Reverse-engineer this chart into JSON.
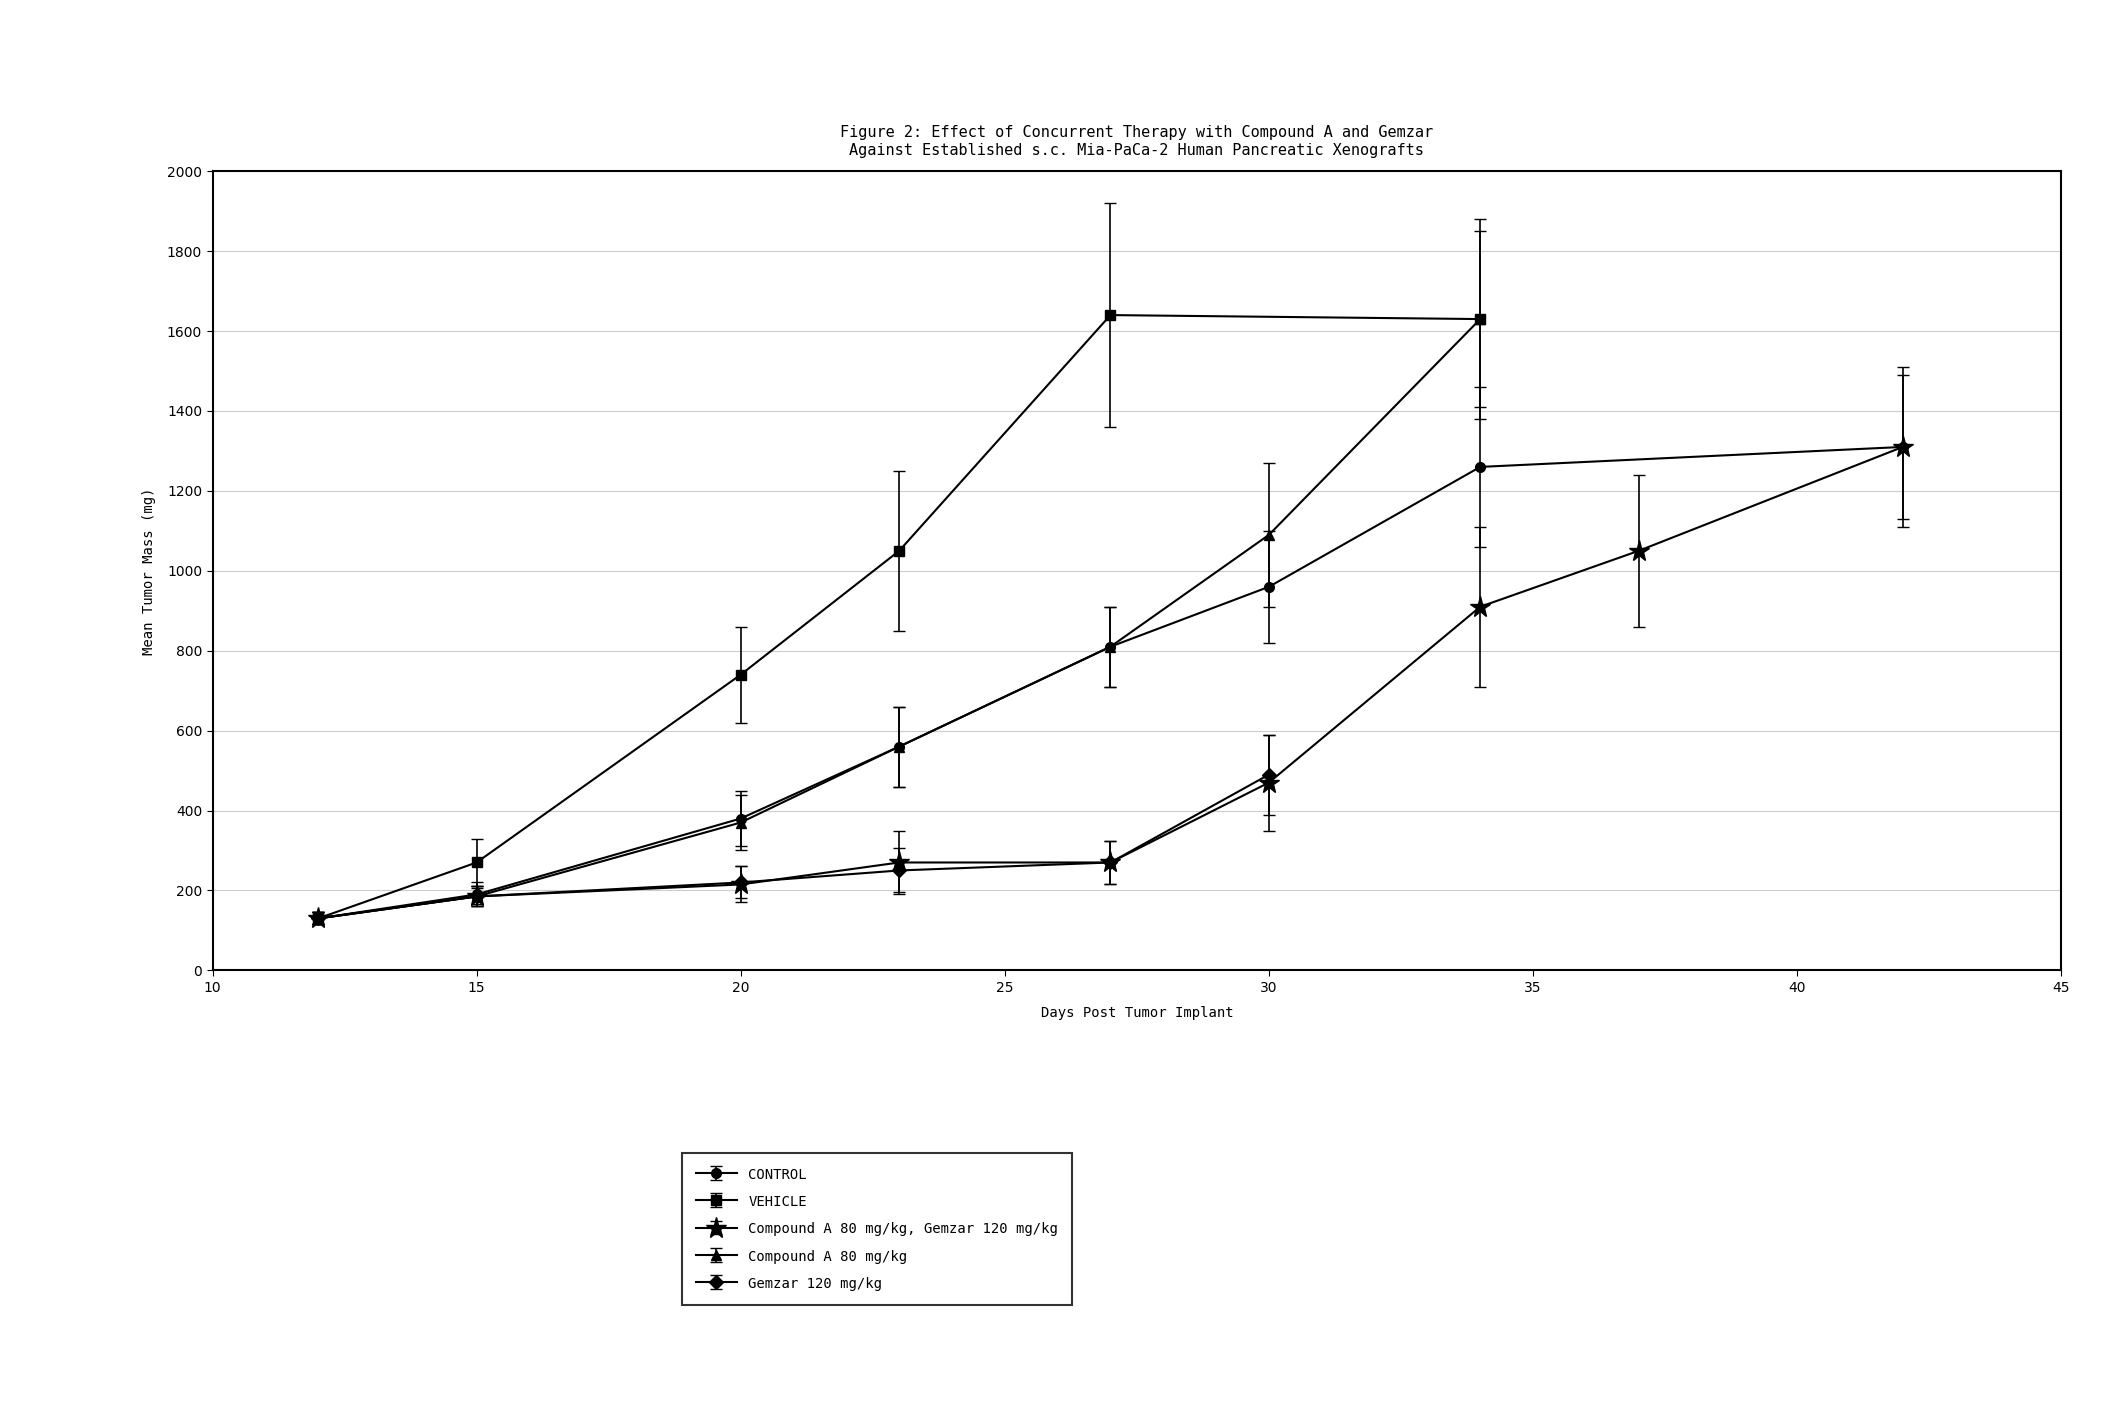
{
  "title_line1": "Figure 2: Effect of Concurrent Therapy with Compound A and Gemzar",
  "title_line2": "Against Established s.c. Mia-PaCa-2 Human Pancreatic Xenografts",
  "xlabel": "Days Post Tumor Implant",
  "ylabel": "Mean Tumor Mass (mg)",
  "xlim": [
    10,
    45
  ],
  "ylim": [
    0,
    2000
  ],
  "xticks": [
    10,
    15,
    20,
    25,
    30,
    35,
    40,
    45
  ],
  "yticks": [
    0,
    200,
    400,
    600,
    800,
    1000,
    1200,
    1400,
    1600,
    1800,
    2000
  ],
  "series": [
    {
      "key": "control",
      "label": "CONTROL",
      "marker": "o",
      "x": [
        12,
        15,
        20,
        23,
        27,
        30,
        34,
        42
      ],
      "y": [
        130,
        190,
        380,
        560,
        810,
        960,
        1260,
        1310
      ],
      "yerr": [
        15,
        30,
        70,
        100,
        100,
        140,
        200,
        180
      ]
    },
    {
      "key": "vehicle",
      "label": "VEHICLE",
      "marker": "s",
      "x": [
        12,
        15,
        20,
        23,
        27,
        34
      ],
      "y": [
        130,
        270,
        740,
        1050,
        1640,
        1630
      ],
      "yerr": [
        15,
        60,
        120,
        200,
        280,
        220
      ]
    },
    {
      "key": "compound_a_gemzar",
      "label": "Compound A 80 mg/kg, Gemzar 120 mg/kg",
      "marker": "*",
      "x": [
        12,
        15,
        20,
        23,
        27,
        30,
        34,
        37,
        42
      ],
      "y": [
        130,
        185,
        215,
        270,
        270,
        470,
        910,
        1050,
        1310
      ],
      "yerr": [
        15,
        25,
        45,
        80,
        55,
        120,
        200,
        190,
        200
      ]
    },
    {
      "key": "compound_a",
      "label": "Compound A 80 mg/kg",
      "marker": "^",
      "x": [
        12,
        15,
        20,
        23,
        27,
        30,
        34
      ],
      "y": [
        130,
        185,
        370,
        560,
        810,
        1090,
        1630
      ],
      "yerr": [
        15,
        25,
        70,
        100,
        100,
        180,
        250
      ]
    },
    {
      "key": "gemzar",
      "label": "Gemzar 120 mg/kg",
      "marker": "D",
      "x": [
        12,
        15,
        20,
        23,
        27,
        30
      ],
      "y": [
        130,
        185,
        220,
        250,
        270,
        490
      ],
      "yerr": [
        15,
        20,
        40,
        55,
        55,
        100
      ]
    }
  ],
  "line_color": "#000000",
  "bg_color": "#ffffff",
  "grid_color": "#cccccc",
  "title_fontsize": 11,
  "label_fontsize": 10,
  "tick_fontsize": 10,
  "legend_fontsize": 10,
  "marker_size": 7,
  "linewidth": 1.5
}
